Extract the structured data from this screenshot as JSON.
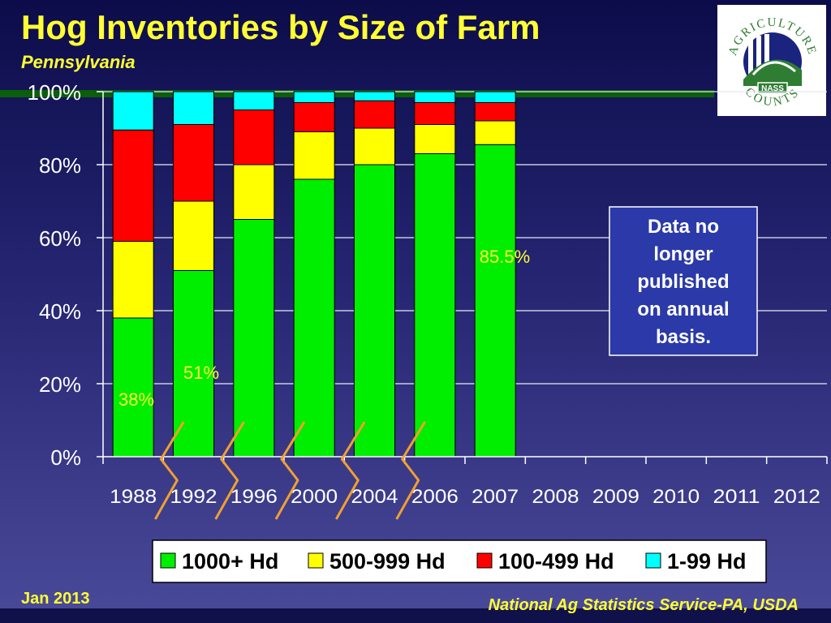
{
  "header": {
    "title": "Hog Inventories by Size of Farm",
    "subtitle": "Pennsylvania"
  },
  "logo": {
    "top_text": "AGRICULTURE",
    "bottom_text": "COUNTS",
    "badge": "NASS",
    "colors": {
      "green": "#2e7d32",
      "navy": "#1a237e"
    }
  },
  "footer": {
    "date": "Jan 2013",
    "source": "National Ag Statistics Service-PA, USDA"
  },
  "chart_data": {
    "type": "bar",
    "stacked": true,
    "categories": [
      "1988",
      "1992",
      "1996",
      "2000",
      "2004",
      "2006",
      "2007",
      "2008",
      "2009",
      "2010",
      "2011",
      "2012"
    ],
    "series": [
      {
        "name": "1000+ Hd",
        "color": "#00ee00",
        "values": [
          38,
          51,
          65,
          76,
          80,
          83,
          85.5,
          null,
          null,
          null,
          null,
          null
        ]
      },
      {
        "name": "500-999 Hd",
        "color": "#ffff00",
        "values": [
          21,
          19,
          15,
          13,
          10,
          8,
          6.5,
          null,
          null,
          null,
          null,
          null
        ]
      },
      {
        "name": "100-499 Hd",
        "color": "#ff0000",
        "values": [
          30.5,
          21,
          15,
          8,
          7.5,
          6,
          5,
          null,
          null,
          null,
          null,
          null
        ]
      },
      {
        "name": "1-99 Hd",
        "color": "#00ffff",
        "values": [
          10.5,
          9,
          5,
          3,
          2.5,
          3,
          3,
          null,
          null,
          null,
          null,
          null
        ]
      }
    ],
    "data_labels": [
      {
        "category": "1988",
        "text": "38%"
      },
      {
        "category": "1992",
        "text": "51%"
      },
      {
        "category": "2007",
        "text": "85.5%"
      }
    ],
    "yticks": [
      "0%",
      "20%",
      "40%",
      "60%",
      "80%",
      "100%"
    ],
    "ylim": [
      0,
      100
    ],
    "grid": true,
    "axis_breaks": [
      "1988-1992",
      "1992-1996",
      "1996-2000",
      "2000-2004",
      "2004-2006"
    ],
    "annotation": "Data no longer published on annual basis.",
    "legend_position": "bottom"
  }
}
